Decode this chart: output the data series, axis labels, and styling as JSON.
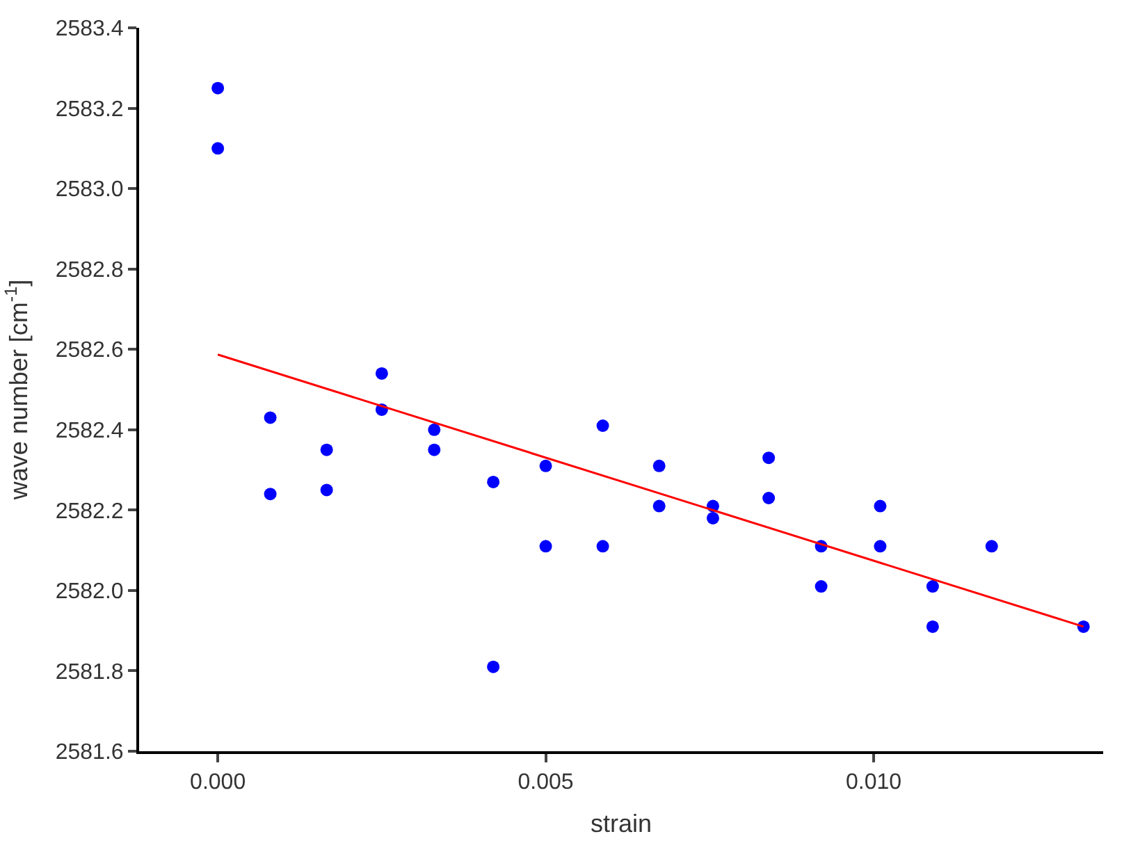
{
  "chart_data": {
    "type": "scatter",
    "xlabel": "strain",
    "ylabel": "wave number [cm$^{-1}$]",
    "xlim": [
      -0.0012,
      0.0135
    ],
    "ylim": [
      2581.6,
      2583.4
    ],
    "xticks": [
      {
        "value": 0,
        "label": "0.000"
      },
      {
        "value": 0.005,
        "label": "0.005"
      },
      {
        "value": 0.01,
        "label": "0.010"
      }
    ],
    "yticks": [
      {
        "value": 2581.6,
        "label": "2581.6"
      },
      {
        "value": 2581.8,
        "label": "2581.8"
      },
      {
        "value": 2582.0,
        "label": "2582.0"
      },
      {
        "value": 2582.2,
        "label": "2582.2"
      },
      {
        "value": 2582.4,
        "label": "2582.4"
      },
      {
        "value": 2582.6,
        "label": "2582.6"
      },
      {
        "value": 2582.8,
        "label": "2582.8"
      },
      {
        "value": 2583.0,
        "label": "2583.0"
      },
      {
        "value": 2583.2,
        "label": "2583.2"
      },
      {
        "value": 2583.4,
        "label": "2583.4"
      }
    ],
    "legend": false,
    "marker": "circle",
    "series": [
      {
        "color": "#0000ff",
        "x": [
          0,
          0,
          0.0008,
          0.0008,
          0.00166,
          0.00166,
          0.0025,
          0.0025,
          0.0033,
          0.0033,
          0.0042,
          0.0042,
          0.005,
          0.005,
          0.00587,
          0.00587,
          0.00673,
          0.00673,
          0.00755,
          0.00755,
          0.0084,
          0.0084,
          0.0092,
          0.0092,
          0.0101,
          0.0101,
          0.0109,
          0.0109,
          0.0118,
          0.0132
        ],
        "values": [
          2583.25,
          2583.1,
          2582.43,
          2582.24,
          2582.35,
          2582.25,
          2582.54,
          2582.45,
          2582.4,
          2582.35,
          2582.27,
          2581.81,
          2582.31,
          2582.11,
          2582.41,
          2582.11,
          2582.31,
          2582.21,
          2582.21,
          2582.18,
          2582.33,
          2582.23,
          2582.11,
          2582.01,
          2582.21,
          2582.11,
          2582.01,
          2581.91,
          2582.11,
          2581.91
        ]
      },
      {
        "type": "line",
        "color": "#ff0000",
        "marker": "none",
        "line_style": "solid",
        "x": [
          0,
          0.0132
        ],
        "values": [
          2582.587,
          2581.91
        ]
      }
    ]
  }
}
